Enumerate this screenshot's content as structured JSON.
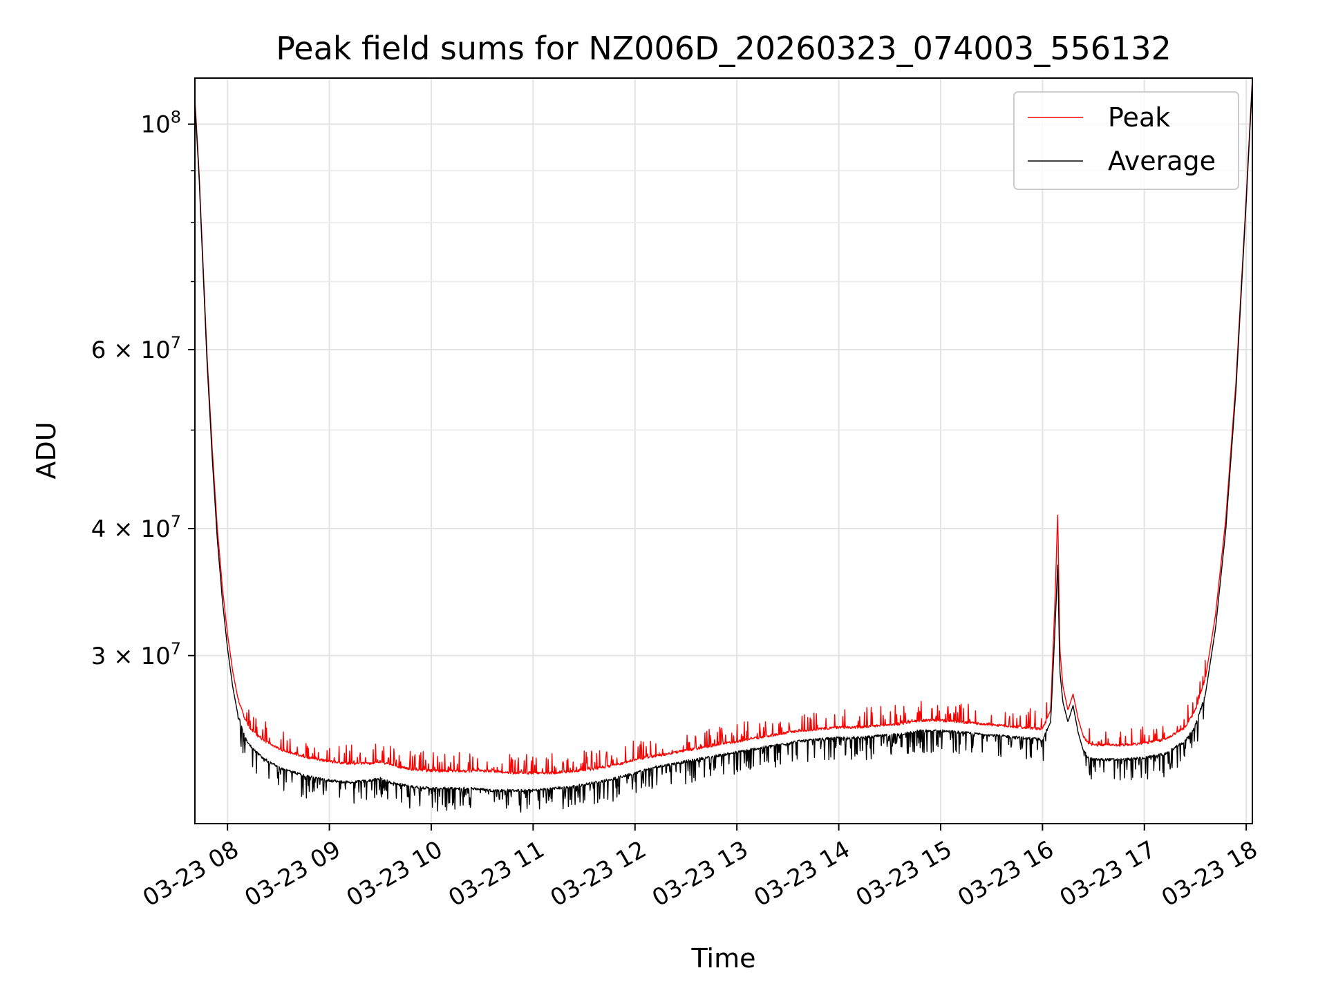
{
  "chart_data": {
    "type": "line",
    "title": "Peak field sums for NZ006D_20260323_074003_556132",
    "xlabel": "Time",
    "ylabel": "ADU",
    "yscale": "log",
    "xlim": [
      7.68,
      18.06
    ],
    "ylim": [
      20500000,
      111000000
    ],
    "grid": true,
    "legend_loc": "upper right",
    "x_ticks": [
      {
        "value": 8,
        "label": "03-23 08"
      },
      {
        "value": 9,
        "label": "03-23 09"
      },
      {
        "value": 10,
        "label": "03-23 10"
      },
      {
        "value": 11,
        "label": "03-23 11"
      },
      {
        "value": 12,
        "label": "03-23 12"
      },
      {
        "value": 13,
        "label": "03-23 13"
      },
      {
        "value": 14,
        "label": "03-23 14"
      },
      {
        "value": 15,
        "label": "03-23 15"
      },
      {
        "value": 16,
        "label": "03-23 16"
      },
      {
        "value": 17,
        "label": "03-23 17"
      },
      {
        "value": 18,
        "label": "03-23 18"
      }
    ],
    "y_major_ticks": [
      {
        "value": 100000000,
        "base": "10",
        "exp": "8",
        "mult": ""
      },
      {
        "value": 60000000,
        "base": "10",
        "exp": "7",
        "mult": "6 × "
      },
      {
        "value": 40000000,
        "base": "10",
        "exp": "7",
        "mult": "4 × "
      },
      {
        "value": 30000000,
        "base": "10",
        "exp": "7",
        "mult": "3 × "
      }
    ],
    "y_minor_ticks": [
      90000000,
      80000000,
      70000000,
      50000000
    ],
    "series": [
      {
        "name": "Peak",
        "color": "#ff0000",
        "x": [
          7.68,
          7.72,
          7.76,
          7.8,
          7.85,
          7.9,
          7.95,
          8.0,
          8.05,
          8.1,
          8.15,
          8.2,
          8.3,
          8.4,
          8.5,
          8.6,
          8.8,
          9.0,
          9.2,
          9.4,
          9.5,
          9.6,
          9.8,
          10.0,
          10.2,
          10.4,
          10.6,
          10.8,
          11.0,
          11.2,
          11.4,
          11.6,
          11.8,
          12.0,
          12.2,
          12.4,
          12.6,
          12.8,
          13.0,
          13.2,
          13.4,
          13.6,
          13.8,
          14.0,
          14.2,
          14.4,
          14.6,
          14.8,
          15.0,
          15.2,
          15.4,
          15.6,
          15.8,
          16.0,
          16.08,
          16.12,
          16.15,
          16.17,
          16.2,
          16.25,
          16.3,
          16.35,
          16.4,
          16.45,
          16.5,
          16.6,
          16.8,
          17.0,
          17.2,
          17.4,
          17.5,
          17.6,
          17.7,
          17.8,
          17.9,
          18.0,
          18.06
        ],
        "values": [
          106000000,
          90000000,
          73000000,
          59000000,
          48000000,
          40000000,
          35000000,
          31500000,
          29000000,
          27300000,
          26300000,
          25600000,
          25000000,
          24600000,
          24300000,
          24100000,
          23800000,
          23600000,
          23500000,
          23500000,
          23600000,
          23400000,
          23200000,
          23100000,
          23100000,
          23100000,
          23100000,
          23000000,
          23000000,
          23000000,
          23100000,
          23200000,
          23400000,
          23700000,
          23900000,
          24100000,
          24300000,
          24500000,
          24700000,
          24900000,
          25100000,
          25300000,
          25400000,
          25500000,
          25500000,
          25600000,
          25700000,
          25900000,
          25900000,
          25800000,
          25700000,
          25600000,
          25500000,
          25400000,
          26500000,
          33500000,
          41500000,
          30500000,
          28000000,
          26500000,
          27500000,
          26000000,
          25000000,
          24600000,
          24500000,
          24500000,
          24500000,
          24600000,
          24800000,
          25500000,
          26500000,
          28500000,
          33000000,
          41000000,
          56000000,
          85000000,
          111000000
        ]
      },
      {
        "name": "Average",
        "color": "#000000",
        "x": [
          7.68,
          7.72,
          7.76,
          7.8,
          7.85,
          7.9,
          7.95,
          8.0,
          8.05,
          8.1,
          8.15,
          8.2,
          8.3,
          8.4,
          8.5,
          8.6,
          8.8,
          9.0,
          9.2,
          9.4,
          9.5,
          9.6,
          9.8,
          10.0,
          10.2,
          10.4,
          10.6,
          10.8,
          11.0,
          11.2,
          11.4,
          11.6,
          11.8,
          12.0,
          12.2,
          12.4,
          12.6,
          12.8,
          13.0,
          13.2,
          13.4,
          13.6,
          13.8,
          14.0,
          14.2,
          14.4,
          14.6,
          14.8,
          15.0,
          15.2,
          15.4,
          15.6,
          15.8,
          16.0,
          16.08,
          16.12,
          16.15,
          16.17,
          16.2,
          16.25,
          16.3,
          16.35,
          16.4,
          16.45,
          16.5,
          16.6,
          16.8,
          17.0,
          17.2,
          17.4,
          17.5,
          17.6,
          17.7,
          17.8,
          17.9,
          18.0,
          18.06
        ],
        "values": [
          105000000,
          89000000,
          72000000,
          58000000,
          47000000,
          39000000,
          34000000,
          30500000,
          28000000,
          26300000,
          25300000,
          24600000,
          24000000,
          23600000,
          23300000,
          23100000,
          22800000,
          22600000,
          22500000,
          22600000,
          22700000,
          22500000,
          22300000,
          22200000,
          22200000,
          22200000,
          22100000,
          22100000,
          22100000,
          22200000,
          22300000,
          22500000,
          22700000,
          23000000,
          23300000,
          23500000,
          23700000,
          23900000,
          24100000,
          24300000,
          24500000,
          24700000,
          24800000,
          24900000,
          24900000,
          25000000,
          25100000,
          25300000,
          25300000,
          25200000,
          25100000,
          25000000,
          24900000,
          24800000,
          25800000,
          31500000,
          37000000,
          29000000,
          27000000,
          25800000,
          26800000,
          25200000,
          24200000,
          23800000,
          23700000,
          23700000,
          23700000,
          23800000,
          24000000,
          24700000,
          25600000,
          27500000,
          32000000,
          40000000,
          55000000,
          84000000,
          110000000
        ]
      }
    ]
  }
}
